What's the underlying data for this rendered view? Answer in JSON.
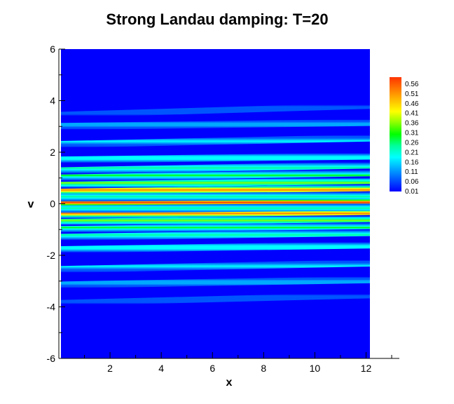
{
  "chart_data": {
    "type": "heatmap",
    "title": "Strong Landau damping: T=20",
    "xlabel": "x",
    "ylabel": "v",
    "xlim": [
      0,
      12.566
    ],
    "ylim": [
      -6,
      6
    ],
    "axis_extent_x": [
      0,
      13.3
    ],
    "xticks": [
      2,
      4,
      6,
      8,
      10,
      12
    ],
    "xtick_labels": [
      "2",
      "4",
      "6",
      "8",
      "10",
      "12"
    ],
    "yticks": [
      -6,
      -4,
      -2,
      0,
      2,
      4,
      6
    ],
    "ytick_labels": [
      "-6",
      "-4",
      "-2",
      "0",
      "2",
      "4",
      "6"
    ],
    "colorbar": {
      "levels": [
        "0.56",
        "0.51",
        "0.46",
        "0.41",
        "0.36",
        "0.31",
        "0.26",
        "0.21",
        "0.16",
        "0.11",
        "0.06",
        "0.01"
      ],
      "min": 0.01,
      "max": 0.56,
      "colors": [
        "#0000ff",
        "#0055ff",
        "#00aaff",
        "#00ffff",
        "#00ff99",
        "#00ff00",
        "#88ff00",
        "#ffff00",
        "#ffbb00",
        "#ff7700",
        "#ff3300"
      ]
    },
    "background_value": 0.01,
    "filaments": [
      {
        "v_start": 0.0,
        "v_end": 0.1,
        "peak": 0.56,
        "width": 0.05
      },
      {
        "v_start": 0.45,
        "v_end": 0.62,
        "peak": 0.5,
        "width": 0.05
      },
      {
        "v_start": -0.45,
        "v_end": -0.3,
        "peak": 0.5,
        "width": 0.05
      },
      {
        "v_start": 0.22,
        "v_end": 0.33,
        "peak": 0.22,
        "width": 0.06
      },
      {
        "v_start": -0.22,
        "v_end": -0.12,
        "peak": 0.22,
        "width": 0.06
      },
      {
        "v_start": 0.72,
        "v_end": 0.9,
        "peak": 0.32,
        "width": 0.05
      },
      {
        "v_start": -0.72,
        "v_end": -0.58,
        "peak": 0.32,
        "width": 0.05
      },
      {
        "v_start": 1.0,
        "v_end": 1.2,
        "peak": 0.26,
        "width": 0.05
      },
      {
        "v_start": -1.0,
        "v_end": -0.85,
        "peak": 0.26,
        "width": 0.05
      },
      {
        "v_start": 1.28,
        "v_end": 1.5,
        "peak": 0.22,
        "width": 0.05
      },
      {
        "v_start": -1.3,
        "v_end": -1.12,
        "peak": 0.22,
        "width": 0.05
      },
      {
        "v_start": 1.7,
        "v_end": 1.85,
        "peak": 0.2,
        "width": 0.05
      },
      {
        "v_start": -1.78,
        "v_end": -1.6,
        "peak": 0.2,
        "width": 0.05
      },
      {
        "v_start": 2.3,
        "v_end": 2.55,
        "peak": 0.15,
        "width": 0.05
      },
      {
        "v_start": -2.55,
        "v_end": -2.3,
        "peak": 0.15,
        "width": 0.05
      },
      {
        "v_start": 3.0,
        "v_end": 3.15,
        "peak": 0.13,
        "width": 0.05
      },
      {
        "v_start": -3.15,
        "v_end": -2.95,
        "peak": 0.13,
        "width": 0.05
      },
      {
        "v_start": 3.45,
        "v_end": 3.8,
        "peak": 0.08,
        "width": 0.04
      },
      {
        "v_start": -3.85,
        "v_end": -3.55,
        "peak": 0.08,
        "width": 0.04
      }
    ]
  }
}
